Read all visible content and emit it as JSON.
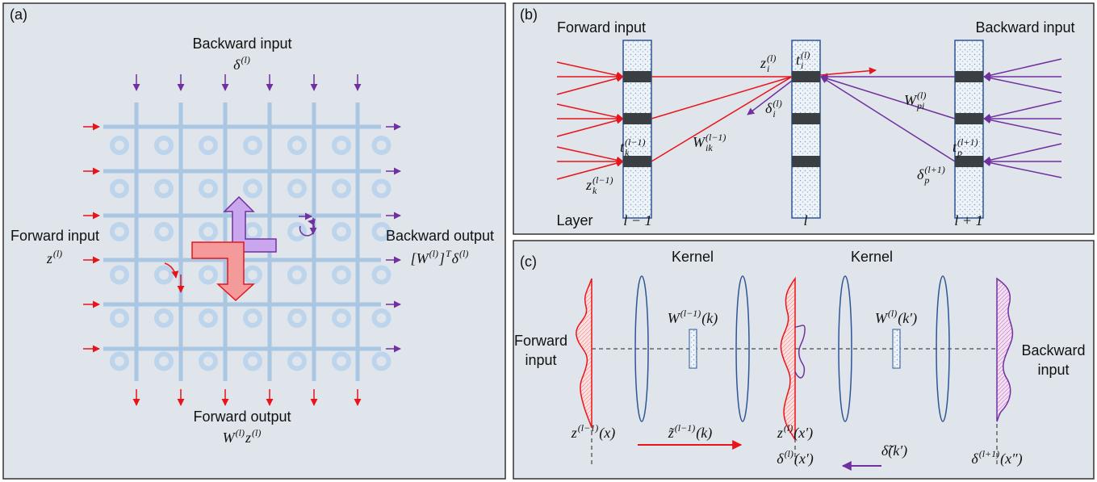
{
  "panel_a": {
    "label": "(a)",
    "backward_input": {
      "title": "Backward input",
      "math": [
        {
          "t": "δ",
          "sup": "(l)"
        }
      ]
    },
    "forward_input": {
      "title": "Forward input",
      "math": [
        {
          "t": "z",
          "sup": "(l)"
        }
      ]
    },
    "backward_output": {
      "title": "Backward output",
      "math": [
        {
          "t": "[W",
          "sup": "(l)"
        },
        {
          "t": "]",
          "sup": "T"
        },
        {
          "t": "δ",
          "sup": "(l)"
        }
      ]
    },
    "forward_output": {
      "title": "Forward output",
      "math": [
        {
          "t": "W",
          "sup": "(l)"
        },
        {
          "t": "z",
          "sup": "(l)"
        }
      ]
    }
  },
  "panel_b": {
    "label": "(b)",
    "forward_input": "Forward input",
    "backward_input": "Backward input",
    "layer": "Layer",
    "layers": [
      "l − 1",
      "l",
      "l + 1"
    ],
    "symbols": [
      [
        {
          "t": "z",
          "sub": "i",
          "sup": "(l)"
        }
      ],
      [
        {
          "t": "t",
          "sub": "i",
          "sup": "(l)"
        }
      ],
      [
        {
          "t": "δ",
          "sub": "i",
          "sup": "(l)"
        }
      ],
      [
        {
          "t": "W",
          "sub": "pi",
          "sup": "(l)"
        }
      ],
      [
        {
          "t": "t",
          "sub": "k",
          "sup": "(l−1)"
        }
      ],
      [
        {
          "t": "W",
          "sub": "ik",
          "sup": "(l−1)"
        }
      ],
      [
        {
          "t": "t",
          "sub": "p",
          "sup": "(l+1)"
        }
      ],
      [
        {
          "t": "δ",
          "sub": "p",
          "sup": "(l+1)"
        }
      ],
      [
        {
          "t": "z",
          "sub": "k",
          "sup": "(l−1)"
        }
      ]
    ]
  },
  "panel_c": {
    "label": "(c)",
    "kernels": [
      "Kernel",
      "Kernel"
    ],
    "forward_input": [
      "Forward",
      "input"
    ],
    "backward_input": [
      "Backward",
      "input"
    ],
    "kernel_labels": [
      [
        {
          "t": "W",
          "sup": "(l−1)"
        },
        {
          "t": "(k)"
        }
      ],
      [
        {
          "t": "W",
          "sup": "(l)"
        },
        {
          "t": "(k′)"
        }
      ]
    ],
    "bottom": [
      [
        {
          "t": "z",
          "sup": "(l−1)"
        },
        {
          "t": "(x)"
        }
      ],
      [
        {
          "t": "z̃",
          "sup": "(l−1)"
        },
        {
          "t": "(k)"
        }
      ],
      [
        {
          "t": "z",
          "sup": "(l)"
        },
        {
          "t": "(x′)"
        }
      ],
      [
        {
          "t": "δ",
          "sup": "(l)"
        },
        {
          "t": "(x′)"
        }
      ],
      [
        {
          "t": "δ̃"
        },
        {
          "t": "(k′)"
        }
      ],
      [
        {
          "t": "δ",
          "sup": "(l+1)"
        },
        {
          "t": "(x″)"
        }
      ]
    ]
  }
}
